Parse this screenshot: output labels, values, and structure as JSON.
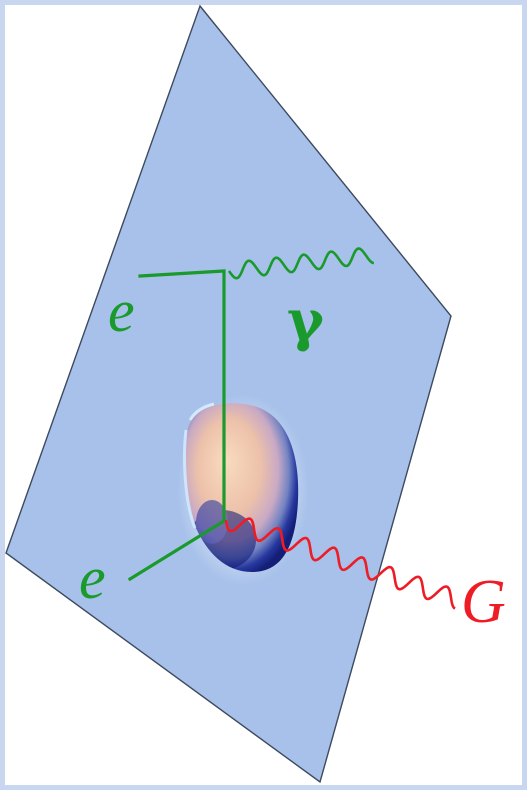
{
  "colors": {
    "frame": "#c9d6ef",
    "page_background": "#ffffff",
    "brane": "#a7c1ea",
    "brane_edge": "#3d4a5e",
    "electron_line": "#1a9a2c",
    "photon_wave": "#1a9a2c",
    "graviton_wave": "#ee1c24",
    "blob_warm": "#f6c8a2",
    "blob_dark": "#0b1570"
  },
  "labels": {
    "electron_top": "e",
    "electron_bottom": "e",
    "photon": "γ",
    "graviton": "G"
  }
}
